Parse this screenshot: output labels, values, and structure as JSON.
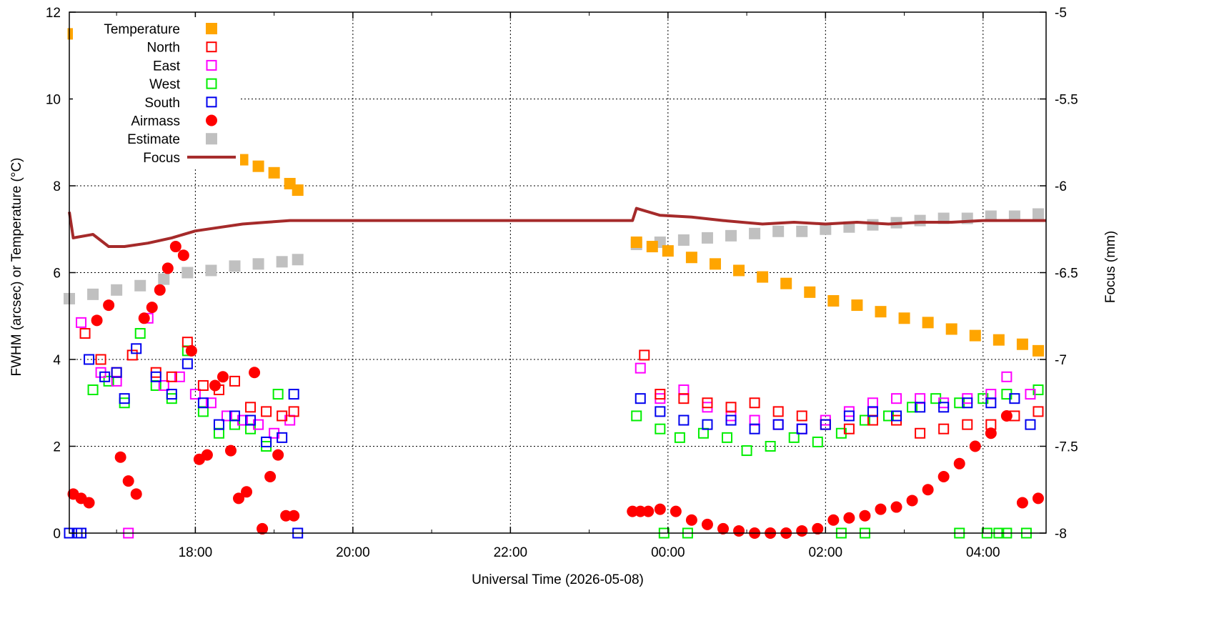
{
  "chart_data": {
    "type": "scatter",
    "xlabel": "Universal Time (2026-05-08)",
    "ylabel": "FWHM (arcsec) or Temperature (°C)",
    "y2label": "Focus (mm)",
    "x_unit": "hours UT from 2026-05-08 00:00",
    "xlim": [
      -7.6,
      4.8
    ],
    "ylim": [
      0,
      12
    ],
    "y2lim": [
      -8,
      -5
    ],
    "x_ticks": [
      {
        "x": -6,
        "label": "18:00"
      },
      {
        "x": -4,
        "label": "20:00"
      },
      {
        "x": -2,
        "label": "22:00"
      },
      {
        "x": 0,
        "label": "00:00"
      },
      {
        "x": 2,
        "label": "02:00"
      },
      {
        "x": 4,
        "label": "04:00"
      }
    ],
    "y_ticks": [
      {
        "y": 0,
        "label": "0"
      },
      {
        "y": 2,
        "label": "2"
      },
      {
        "y": 4,
        "label": "4"
      },
      {
        "y": 6,
        "label": "6"
      },
      {
        "y": 8,
        "label": "8"
      },
      {
        "y": 10,
        "label": "10"
      },
      {
        "y": 12,
        "label": "12"
      }
    ],
    "y2_ticks": [
      {
        "y": -8,
        "label": "-8"
      },
      {
        "y": -7.5,
        "label": "-7.5"
      },
      {
        "y": -7,
        "label": "-7"
      },
      {
        "y": -6.5,
        "label": "-6.5"
      },
      {
        "y": -6,
        "label": "-6"
      },
      {
        "y": -5.5,
        "label": "-5.5"
      },
      {
        "y": -5,
        "label": "-5"
      }
    ],
    "grid": true,
    "legend_position": "top-left",
    "series": [
      {
        "name": "Temperature",
        "color": "#ffa500",
        "marker": "filled-square",
        "x": [
          -7.55,
          -7.4,
          -7.2,
          -7.0,
          -6.8,
          -6.6,
          -6.4,
          -6.2,
          -6.0,
          -5.8,
          -5.6,
          -5.4,
          -5.2,
          -5.0,
          -4.8,
          -4.7,
          -0.4,
          -0.2,
          0.0,
          0.3,
          0.6,
          0.9,
          1.2,
          1.5,
          1.8,
          2.1,
          2.4,
          2.7,
          3.0,
          3.3,
          3.6,
          3.9,
          4.2,
          4.5,
          4.7
        ],
        "y": [
          11.5,
          11.3,
          11.0,
          10.7,
          10.4,
          10.1,
          9.8,
          9.5,
          9.25,
          9.0,
          8.8,
          8.6,
          8.45,
          8.3,
          8.05,
          7.9,
          6.7,
          6.6,
          6.5,
          6.35,
          6.2,
          6.05,
          5.9,
          5.75,
          5.55,
          5.35,
          5.25,
          5.1,
          4.95,
          4.85,
          4.7,
          4.55,
          4.45,
          4.35,
          4.2
        ]
      },
      {
        "name": "North",
        "color": "#ff0000",
        "marker": "open-square",
        "x": [
          -7.4,
          -7.2,
          -7.0,
          -6.8,
          -6.5,
          -6.3,
          -6.1,
          -5.9,
          -5.7,
          -5.5,
          -5.3,
          -5.1,
          -4.9,
          -4.75,
          -0.3,
          -0.1,
          0.2,
          0.5,
          0.8,
          1.1,
          1.4,
          1.7,
          2.0,
          2.3,
          2.6,
          2.9,
          3.2,
          3.5,
          3.8,
          4.1,
          4.4,
          4.7
        ],
        "y": [
          4.6,
          4.0,
          3.7,
          4.1,
          3.7,
          3.6,
          4.4,
          3.4,
          3.3,
          3.5,
          2.9,
          2.8,
          2.7,
          2.8,
          4.1,
          3.2,
          3.1,
          3.0,
          2.9,
          3.0,
          2.8,
          2.7,
          2.5,
          2.4,
          2.6,
          2.6,
          2.3,
          2.4,
          2.5,
          2.5,
          2.7,
          2.8
        ]
      },
      {
        "name": "East",
        "color": "#ff00ff",
        "marker": "open-square",
        "x": [
          -7.45,
          -7.2,
          -7.0,
          -6.85,
          -6.6,
          -6.4,
          -6.2,
          -6.0,
          -5.8,
          -5.6,
          -5.4,
          -5.2,
          -5.0,
          -4.8,
          -0.35,
          -0.1,
          0.2,
          0.5,
          0.8,
          1.1,
          1.4,
          1.7,
          2.0,
          2.3,
          2.6,
          2.9,
          3.2,
          3.5,
          3.8,
          4.1,
          4.3,
          4.6
        ],
        "y": [
          4.85,
          3.7,
          3.5,
          0.0,
          4.95,
          3.4,
          3.6,
          3.2,
          3.0,
          2.7,
          2.6,
          2.5,
          2.3,
          2.6,
          3.8,
          3.1,
          3.3,
          2.9,
          2.7,
          2.6,
          2.5,
          2.4,
          2.6,
          2.8,
          3.0,
          3.1,
          3.1,
          3.0,
          3.1,
          3.2,
          3.6,
          3.2
        ]
      },
      {
        "name": "West",
        "color": "#00ee00",
        "marker": "open-square",
        "x": [
          -7.3,
          -7.1,
          -6.9,
          -6.7,
          -6.5,
          -6.3,
          -6.1,
          -5.9,
          -5.7,
          -5.5,
          -5.3,
          -5.1,
          -4.95,
          -0.4,
          -0.1,
          0.15,
          0.45,
          0.75,
          1.0,
          1.3,
          1.6,
          1.9,
          2.2,
          2.5,
          2.8,
          3.1,
          3.4,
          3.7,
          4.0,
          4.3,
          4.7,
          -0.05,
          0.25,
          2.2,
          2.5,
          3.7,
          4.05,
          4.2,
          4.3,
          4.55
        ],
        "y": [
          3.3,
          3.5,
          3.0,
          4.6,
          3.4,
          3.1,
          4.2,
          2.8,
          2.3,
          2.5,
          2.4,
          2.0,
          3.2,
          2.7,
          2.4,
          2.2,
          2.3,
          2.2,
          1.9,
          2.0,
          2.2,
          2.1,
          2.3,
          2.6,
          2.7,
          2.9,
          3.1,
          3.0,
          3.1,
          3.2,
          3.3,
          0.0,
          0.0,
          0.0,
          0.0,
          0.0,
          0.0,
          0.0,
          0.0,
          0.0
        ]
      },
      {
        "name": "South",
        "color": "#0000ee",
        "marker": "open-square",
        "x": [
          -7.6,
          -7.5,
          -7.45,
          -7.35,
          -7.15,
          -7.0,
          -6.9,
          -6.75,
          -6.5,
          -6.3,
          -6.1,
          -5.9,
          -5.7,
          -5.5,
          -5.3,
          -5.1,
          -4.9,
          -4.75,
          -4.7,
          -0.35,
          -0.1,
          0.2,
          0.5,
          0.8,
          1.1,
          1.4,
          1.7,
          2.0,
          2.3,
          2.6,
          2.9,
          3.2,
          3.5,
          3.8,
          4.1,
          4.4,
          4.6
        ],
        "y": [
          0.0,
          0.0,
          0.0,
          4.0,
          3.6,
          3.7,
          3.1,
          4.25,
          3.6,
          3.2,
          3.9,
          3.0,
          2.5,
          2.7,
          2.6,
          2.1,
          2.2,
          3.2,
          0.0,
          3.1,
          2.8,
          2.6,
          2.5,
          2.6,
          2.4,
          2.5,
          2.4,
          2.5,
          2.7,
          2.8,
          2.7,
          2.9,
          2.9,
          3.0,
          3.0,
          3.1,
          2.5
        ]
      },
      {
        "name": "Airmass",
        "color": "#ff0000",
        "marker": "filled-circle",
        "x": [
          -7.55,
          -7.45,
          -7.35,
          -7.25,
          -7.1,
          -6.95,
          -6.85,
          -6.75,
          -6.65,
          -6.55,
          -6.45,
          -6.35,
          -6.25,
          -6.15,
          -6.05,
          -5.95,
          -5.85,
          -5.75,
          -5.65,
          -5.55,
          -5.45,
          -5.35,
          -5.25,
          -5.15,
          -5.05,
          -4.95,
          -4.85,
          -4.75,
          -0.45,
          -0.35,
          -0.25,
          -0.1,
          0.1,
          0.3,
          0.5,
          0.7,
          0.9,
          1.1,
          1.3,
          1.5,
          1.7,
          1.9,
          2.1,
          2.3,
          2.5,
          2.7,
          2.9,
          3.1,
          3.3,
          3.5,
          3.7,
          3.9,
          4.1,
          4.3,
          4.5,
          4.7
        ],
        "y": [
          0.9,
          0.8,
          0.7,
          4.9,
          5.25,
          1.75,
          1.2,
          0.9,
          4.95,
          5.2,
          5.6,
          6.1,
          6.6,
          6.4,
          4.2,
          1.7,
          1.8,
          3.4,
          3.6,
          1.9,
          0.8,
          0.95,
          3.7,
          0.1,
          1.3,
          1.8,
          0.4,
          0.4,
          0.5,
          0.5,
          0.5,
          0.55,
          0.5,
          0.3,
          0.2,
          0.1,
          0.05,
          0.0,
          0.0,
          0.0,
          0.05,
          0.1,
          0.3,
          0.35,
          0.4,
          0.55,
          0.6,
          0.75,
          1.0,
          1.3,
          1.6,
          2.0,
          2.3,
          2.7,
          0.7,
          0.8
        ]
      },
      {
        "name": "Estimate",
        "color": "#c0c0c0",
        "marker": "filled-square",
        "x": [
          -7.6,
          -7.3,
          -7.0,
          -6.7,
          -6.4,
          -6.1,
          -5.8,
          -5.5,
          -5.2,
          -4.9,
          -4.7,
          -0.4,
          -0.1,
          0.2,
          0.5,
          0.8,
          1.1,
          1.4,
          1.7,
          2.0,
          2.3,
          2.6,
          2.9,
          3.2,
          3.5,
          3.8,
          4.1,
          4.4,
          4.7
        ],
        "y": [
          5.4,
          5.5,
          5.6,
          5.7,
          5.85,
          6.0,
          6.05,
          6.15,
          6.2,
          6.25,
          6.3,
          6.65,
          6.7,
          6.75,
          6.8,
          6.85,
          6.9,
          6.95,
          6.95,
          7.0,
          7.05,
          7.1,
          7.15,
          7.2,
          7.25,
          7.25,
          7.3,
          7.3,
          7.35
        ]
      },
      {
        "name": "Focus",
        "color": "#a52a2a",
        "marker": "line",
        "x": [
          -7.6,
          -7.55,
          -7.3,
          -7.1,
          -6.9,
          -6.6,
          -6.3,
          -6.0,
          -5.7,
          -5.4,
          -5.1,
          -4.8,
          -4.6,
          -0.45,
          -0.4,
          -0.1,
          0.3,
          0.7,
          1.2,
          1.6,
          2.0,
          2.4,
          2.8,
          3.2,
          3.6,
          4.0,
          4.4,
          4.8
        ],
        "y": [
          -6.15,
          -6.3,
          -6.28,
          -6.35,
          -6.35,
          -6.33,
          -6.3,
          -6.26,
          -6.24,
          -6.22,
          -6.21,
          -6.2,
          -6.2,
          -6.2,
          -6.13,
          -6.17,
          -6.18,
          -6.2,
          -6.22,
          -6.21,
          -6.22,
          -6.21,
          -6.22,
          -6.21,
          -6.21,
          -6.2,
          -6.2,
          -6.2
        ]
      }
    ]
  }
}
